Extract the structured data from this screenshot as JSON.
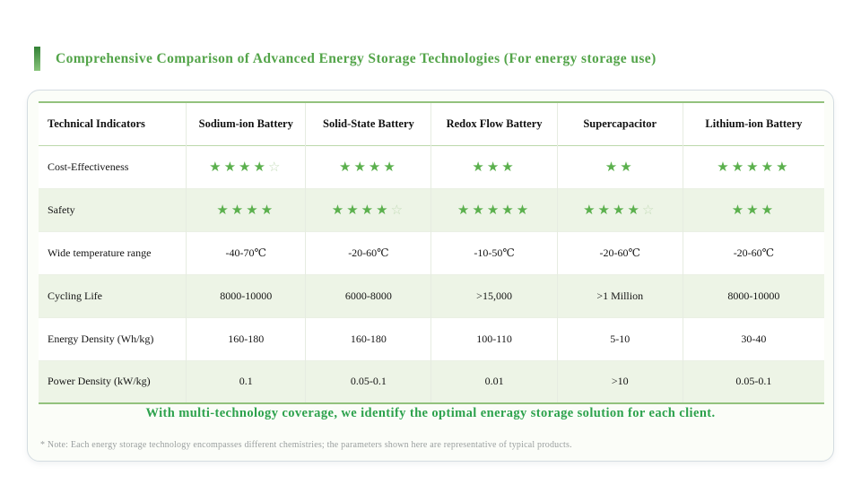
{
  "page": {
    "title": "Comprehensive Comparison of Advanced Energy Storage Technologies (For energy storage use)",
    "slogan": "With multi-technology coverage, we identify the optimal eneragy storage solution for each client.",
    "note": "* Note: Each energy storage technology encompasses different chemistries; the parameters shown here are representative of typical products."
  },
  "colors": {
    "accent_green": "#53a449",
    "star_filled": "#5bb04d",
    "star_empty": "#c3dbb8",
    "alt_row_bg": "#edf4e6",
    "table_border_green": "#93c27d",
    "slogan_green": "#2da24d",
    "note_gray": "#9a9f9f",
    "card_border": "#d4dce1",
    "card_bg": "#fbfdf8"
  },
  "table": {
    "columns": [
      "Technical Indicators",
      "Sodium-ion Battery",
      "Solid-State Battery",
      "Redox Flow Battery",
      "Supercapacitor",
      "Lithium-ion Battery"
    ],
    "rows": [
      {
        "label": "Cost-Effectiveness",
        "type": "stars",
        "stars": [
          {
            "full": 4,
            "empty": 1
          },
          {
            "full": 4,
            "empty": 0
          },
          {
            "full": 3,
            "empty": 0
          },
          {
            "full": 2,
            "empty": 0
          },
          {
            "full": 5,
            "empty": 0
          }
        ]
      },
      {
        "label": "Safety",
        "type": "stars",
        "stars": [
          {
            "full": 4,
            "empty": 0
          },
          {
            "full": 4,
            "empty": 1
          },
          {
            "full": 5,
            "empty": 0
          },
          {
            "full": 4,
            "empty": 1
          },
          {
            "full": 3,
            "empty": 0
          }
        ]
      },
      {
        "label": "Wide temperature range",
        "type": "text",
        "values": [
          "-40-70℃",
          "-20-60℃",
          "-10-50℃",
          "-20-60℃",
          "-20-60℃"
        ]
      },
      {
        "label": "Cycling Life",
        "type": "text",
        "values": [
          "8000-10000",
          "6000-8000",
          ">15,000",
          ">1 Million",
          "8000-10000"
        ]
      },
      {
        "label": "Energy Density (Wh/kg)",
        "type": "text",
        "values": [
          "160-180",
          "160-180",
          "100-110",
          "5-10",
          "30-40"
        ]
      },
      {
        "label": "Power Density (kW/kg)",
        "type": "text",
        "values": [
          "0.1",
          "0.05-0.1",
          "0.01",
          ">10",
          "0.05-0.1"
        ]
      }
    ]
  }
}
